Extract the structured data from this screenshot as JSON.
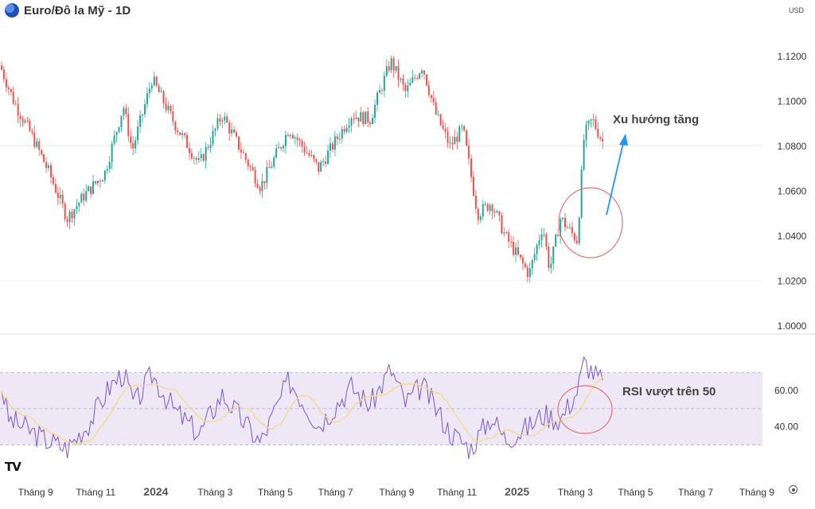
{
  "header": {
    "title": "Euro/Đô la Mỹ - 1D",
    "currency": "USD",
    "symbol_icon": "euro-flag-icon"
  },
  "annotations": {
    "uptrend": "Xu hướng tăng",
    "rsi_note": "RSI vượt trên 50"
  },
  "colors": {
    "up": "#26a69a",
    "down": "#ef5350",
    "rsi": "#7e57c2",
    "rsi_ma": "#f5d987",
    "rsi_band": "#ede7f6",
    "arrow": "#2196f3",
    "circle": "#e57373"
  },
  "chart_data": [
    {
      "type": "candlestick",
      "title": "Euro/Đô la Mỹ - 1D",
      "x_ticks": [
        "Tháng 9",
        "Tháng 11",
        "2024",
        "Tháng 3",
        "Tháng 5",
        "Tháng 7",
        "Tháng 9",
        "Tháng 11",
        "2025",
        "Tháng 3",
        "Tháng 5",
        "Tháng 7",
        "Tháng 9"
      ],
      "y_ticks": [
        "1.1200",
        "1.1000",
        "1.0800",
        "1.0600",
        "1.0400",
        "1.0200",
        "1.0000"
      ],
      "ylim": [
        1.0,
        1.13
      ],
      "close_path": [
        [
          "2023-07-27",
          1.116
        ],
        [
          "2023-08-10",
          1.1
        ],
        [
          "2023-08-28",
          1.085
        ],
        [
          "2023-09-15",
          1.068
        ],
        [
          "2023-10-03",
          1.048
        ],
        [
          "2023-10-20",
          1.058
        ],
        [
          "2023-11-10",
          1.068
        ],
        [
          "2023-11-29",
          1.098
        ],
        [
          "2023-12-08",
          1.078
        ],
        [
          "2023-12-28",
          1.11
        ],
        [
          "2024-01-20",
          1.09
        ],
        [
          "2024-02-14",
          1.072
        ],
        [
          "2024-03-08",
          1.094
        ],
        [
          "2024-04-16",
          1.062
        ],
        [
          "2024-05-15",
          1.088
        ],
        [
          "2024-06-14",
          1.07
        ],
        [
          "2024-07-17",
          1.094
        ],
        [
          "2024-08-05",
          1.092
        ],
        [
          "2024-08-26",
          1.118
        ],
        [
          "2024-09-10",
          1.104
        ],
        [
          "2024-09-27",
          1.116
        ],
        [
          "2024-10-10",
          1.095
        ],
        [
          "2024-10-25",
          1.08
        ],
        [
          "2024-11-07",
          1.088
        ],
        [
          "2024-11-22",
          1.05
        ],
        [
          "2024-12-06",
          1.055
        ],
        [
          "2024-12-20",
          1.04
        ],
        [
          "2025-01-13",
          1.023
        ],
        [
          "2025-01-27",
          1.045
        ],
        [
          "2025-02-03",
          1.025
        ],
        [
          "2025-02-14",
          1.048
        ],
        [
          "2025-03-03",
          1.038
        ],
        [
          "2025-03-10",
          1.085
        ],
        [
          "2025-03-18",
          1.092
        ],
        [
          "2025-03-31",
          1.08
        ]
      ]
    },
    {
      "type": "line",
      "name": "RSI",
      "y_ticks": [
        "60.00",
        "40.00"
      ],
      "ylim": [
        20,
        80
      ],
      "levels": [
        70,
        50,
        30
      ],
      "series_path": [
        [
          "2023-07-27",
          66
        ],
        [
          "2023-08-05",
          44
        ],
        [
          "2023-08-20",
          40
        ],
        [
          "2023-09-10",
          33
        ],
        [
          "2023-10-03",
          28
        ],
        [
          "2023-10-25",
          42
        ],
        [
          "2023-11-15",
          62
        ],
        [
          "2023-11-29",
          70
        ],
        [
          "2023-12-10",
          52
        ],
        [
          "2023-12-28",
          69
        ],
        [
          "2024-01-20",
          49
        ],
        [
          "2024-02-14",
          36
        ],
        [
          "2024-03-08",
          58
        ],
        [
          "2024-04-16",
          31
        ],
        [
          "2024-05-15",
          66
        ],
        [
          "2024-06-14",
          41
        ],
        [
          "2024-07-17",
          62
        ],
        [
          "2024-08-05",
          52
        ],
        [
          "2024-08-26",
          72
        ],
        [
          "2024-09-10",
          53
        ],
        [
          "2024-09-27",
          63
        ],
        [
          "2024-10-25",
          37
        ],
        [
          "2024-11-15",
          28
        ],
        [
          "2024-12-06",
          46
        ],
        [
          "2024-12-20",
          33
        ],
        [
          "2025-01-13",
          40
        ],
        [
          "2025-01-27",
          47
        ],
        [
          "2025-02-14",
          44
        ],
        [
          "2025-03-03",
          60
        ],
        [
          "2025-03-10",
          76
        ],
        [
          "2025-03-18",
          71
        ],
        [
          "2025-03-31",
          63
        ]
      ]
    }
  ]
}
